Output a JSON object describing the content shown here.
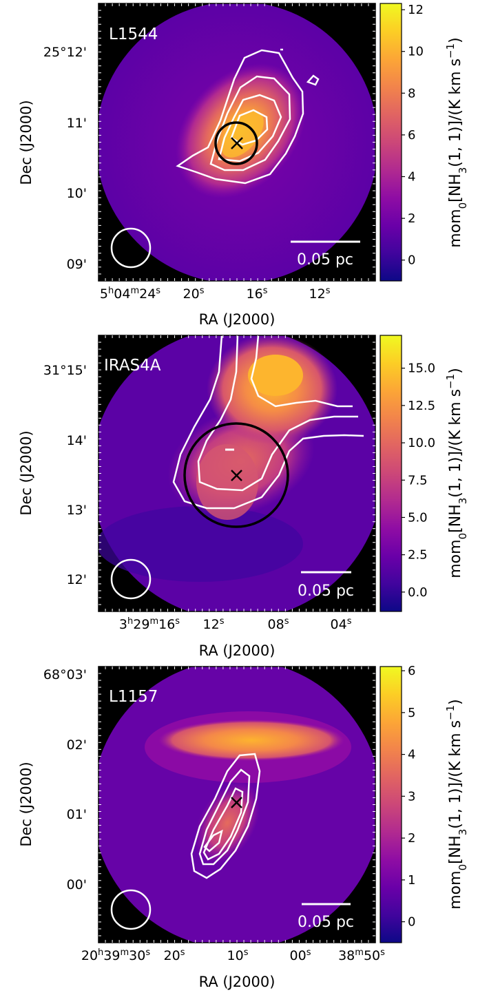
{
  "figure": {
    "background": "#ffffff"
  },
  "colormap": [
    "#0d0887",
    "#41049d",
    "#6a00a8",
    "#8f0da4",
    "#b12a90",
    "#cc4778",
    "#e16462",
    "#f2844b",
    "#fca636",
    "#fcce25",
    "#f0f921"
  ],
  "chart_data": [
    {
      "type": "heatmap",
      "source": "L1544",
      "xlabel": "RA (J2000)",
      "ylabel": "Dec (J2000)",
      "x_ticks": [
        {
          "pre": "5",
          "s1": "h",
          "mid": "04",
          "s2": "m",
          "end": "24",
          "s3": "s"
        },
        {
          "pre": "",
          "s1": "",
          "mid": "",
          "s2": "",
          "end": "20",
          "s3": "s"
        },
        {
          "pre": "",
          "s1": "",
          "mid": "",
          "s2": "",
          "end": "16",
          "s3": "s"
        },
        {
          "pre": "",
          "s1": "",
          "mid": "",
          "s2": "",
          "end": "12",
          "s3": "s"
        }
      ],
      "y_ticks": [
        "25°12'",
        "11'",
        "10'",
        "09'"
      ],
      "colorbar": {
        "range": [
          -1,
          12.3
        ],
        "ticks": [
          "0",
          "2",
          "4",
          "6",
          "8",
          "10",
          "12"
        ],
        "tick_values": [
          0,
          2,
          4,
          6,
          8,
          10,
          12
        ],
        "label_a": "mom",
        "label_b": "0",
        "label_c": "[NH",
        "label_d": "3",
        "label_e": "(1, 1)]/(K km s",
        "label_f": "−1",
        "label_g": ")"
      },
      "peak_value": 12,
      "scale_bar": "0.05 pc",
      "contours": 4,
      "markers": [
        "cross",
        "circle"
      ]
    },
    {
      "type": "heatmap",
      "source": "IRAS4A",
      "xlabel": "RA (J2000)",
      "ylabel": "Dec (J2000)",
      "x_ticks": [
        {
          "pre": "3",
          "s1": "h",
          "mid": "29",
          "s2": "m",
          "end": "16",
          "s3": "s"
        },
        {
          "pre": "",
          "s1": "",
          "mid": "",
          "s2": "",
          "end": "12",
          "s3": "s"
        },
        {
          "pre": "",
          "s1": "",
          "mid": "",
          "s2": "",
          "end": "08",
          "s3": "s"
        },
        {
          "pre": "",
          "s1": "",
          "mid": "",
          "s2": "",
          "end": "04",
          "s3": "s"
        }
      ],
      "y_ticks": [
        "31°15'",
        "14'",
        "13'",
        "12'"
      ],
      "colorbar": {
        "range": [
          -1.3,
          17.2
        ],
        "ticks": [
          "0.0",
          "2.5",
          "5.0",
          "7.5",
          "10.0",
          "12.5",
          "15.0"
        ],
        "tick_values": [
          0,
          2.5,
          5,
          7.5,
          10,
          12.5,
          15
        ],
        "label_a": "mom",
        "label_b": "0",
        "label_c": "[NH",
        "label_d": "3",
        "label_e": "(1, 1)]/(K km s",
        "label_f": "−1",
        "label_g": ")"
      },
      "peak_value": 16,
      "scale_bar": "0.05 pc",
      "contours": 3,
      "markers": [
        "cross",
        "circle"
      ]
    },
    {
      "type": "heatmap",
      "source": "L1157",
      "xlabel": "RA (J2000)",
      "ylabel": "Dec (J2000)",
      "x_ticks": [
        {
          "pre": "20",
          "s1": "h",
          "mid": "39",
          "s2": "m",
          "end": "30",
          "s3": "s"
        },
        {
          "pre": "",
          "s1": "",
          "mid": "",
          "s2": "",
          "end": "20",
          "s3": "s"
        },
        {
          "pre": "",
          "s1": "",
          "mid": "",
          "s2": "",
          "end": "10",
          "s3": "s"
        },
        {
          "pre": "",
          "s1": "",
          "mid": "",
          "s2": "",
          "end": "00",
          "s3": "s"
        },
        {
          "pre": "",
          "s1": "",
          "mid": "",
          "s2": "",
          "end": "",
          "s3": "",
          "mpre": "38",
          "ms": "m",
          "mend": "50",
          "ms3": "s"
        }
      ],
      "y_ticks": [
        "68°03'",
        "02'",
        "01'",
        "00'"
      ],
      "colorbar": {
        "range": [
          -0.5,
          6.1
        ],
        "ticks": [
          "0",
          "1",
          "2",
          "3",
          "4",
          "5",
          "6"
        ],
        "tick_values": [
          0,
          1,
          2,
          3,
          4,
          5,
          6
        ],
        "label_a": "mom",
        "label_b": "0",
        "label_c": "[NH",
        "label_d": "3",
        "label_e": "(1, 1)]/(K km s",
        "label_f": "−1",
        "label_g": ")"
      },
      "peak_value": 6,
      "scale_bar": "0.05 pc",
      "contours": 4,
      "markers": [
        "cross"
      ]
    }
  ]
}
